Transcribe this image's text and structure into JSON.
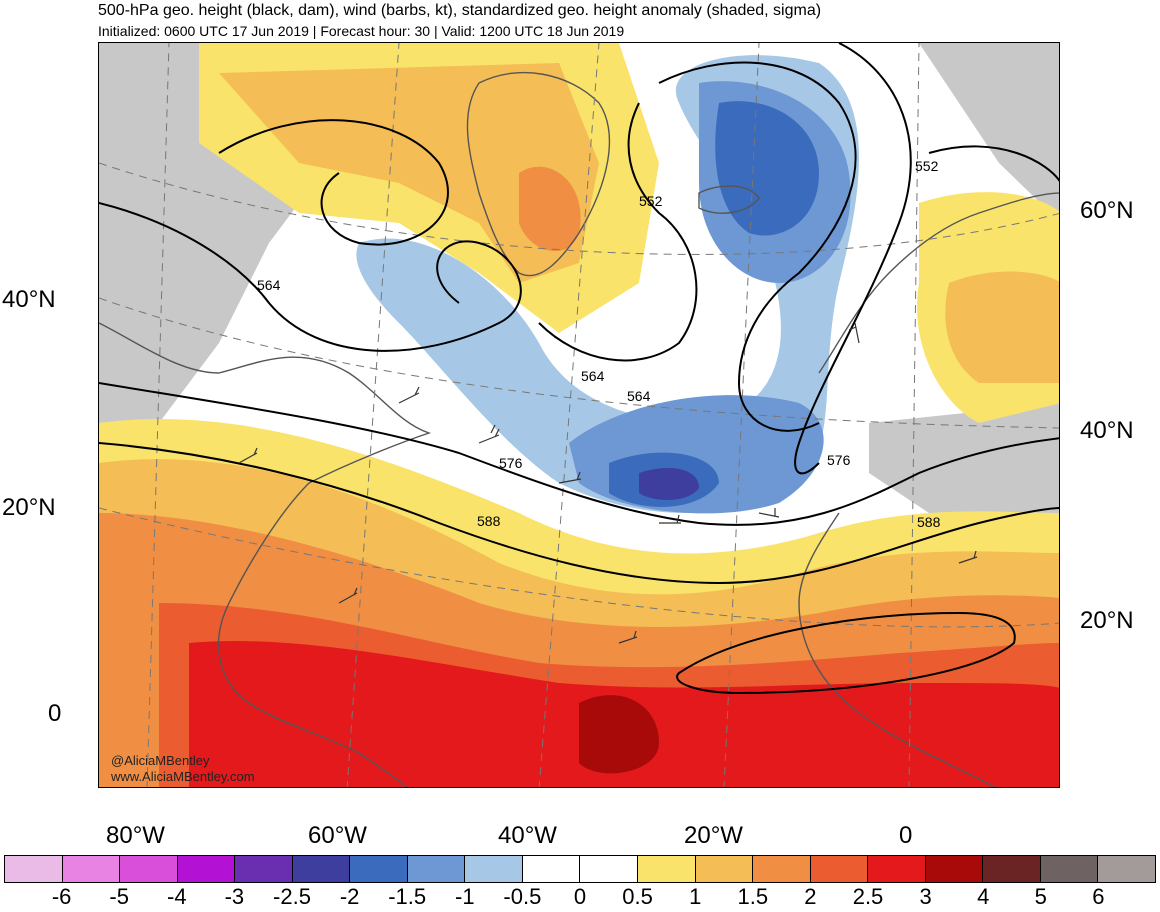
{
  "title": "500-hPa geo. height (black, dam), wind (barbs, kt), standardized geo. height anomaly (shaded, sigma)",
  "subtitle": "Initialized: 0600 UTC 17 Jun 2019 | Forecast hour: 30 | Valid: 1200 UTC 18 Jun 2019",
  "credit": {
    "handle": "@AliciaMBentley",
    "site": "www.AliciaMBentley.com"
  },
  "lat_labels_left": [
    "40°N",
    "20°N",
    "0"
  ],
  "lat_labels_right": [
    "60°N",
    "40°N",
    "20°N"
  ],
  "lon_labels": [
    "80°W",
    "60°W",
    "40°W",
    "20°W",
    "0"
  ],
  "contour_labels": [
    "564",
    "552",
    "564",
    "564",
    "576",
    "588",
    "552",
    "576",
    "588"
  ],
  "colorbar": {
    "colors": [
      "#ebbbe8",
      "#e883e3",
      "#d94fd9",
      "#b311d4",
      "#6a2fb0",
      "#3e3e9e",
      "#3a6bbd",
      "#6e98d3",
      "#a6c8e6",
      "#ffffff",
      "#ffffff",
      "#fae36b",
      "#f4bd55",
      "#f08f43",
      "#ec5c31",
      "#e3191b",
      "#a80a0a",
      "#6b2424",
      "#6f6262",
      "#a39a9a"
    ],
    "labels": [
      "-6",
      "-5",
      "-4",
      "-3",
      "-2.5",
      "-2",
      "-1.5",
      "-1",
      "-0.5",
      "0",
      "0.5",
      "1",
      "1.5",
      "2",
      "2.5",
      "3",
      "4",
      "5",
      "6"
    ]
  },
  "colors": {
    "land_gray": "#c8c8c8",
    "coast": "#555555",
    "contour": "#000000"
  }
}
